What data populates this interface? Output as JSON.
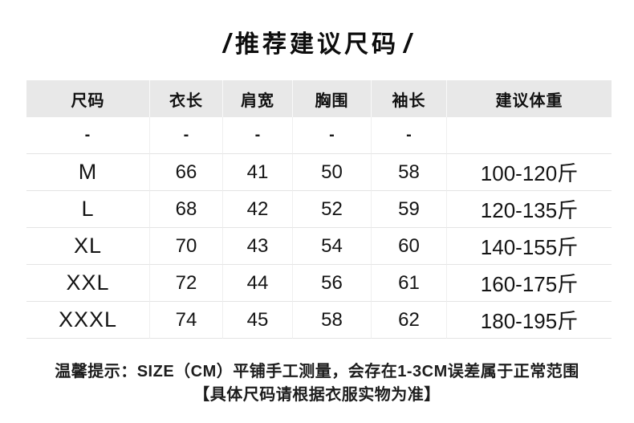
{
  "title": {
    "slash_left": "/",
    "text": "推荐建议尺码",
    "slash_right": "/"
  },
  "chart_data": {
    "type": "table",
    "title": "推荐建议尺码",
    "unit": "CM",
    "columns": [
      "尺码",
      "衣长",
      "肩宽",
      "胸围",
      "袖长",
      "建议体重"
    ],
    "rows": [
      [
        "-",
        "-",
        "-",
        "-",
        "-",
        ""
      ],
      [
        "M",
        "66",
        "41",
        "50",
        "58",
        "100-120斤"
      ],
      [
        "L",
        "68",
        "42",
        "52",
        "59",
        "120-135斤"
      ],
      [
        "XL",
        "70",
        "43",
        "54",
        "60",
        "140-155斤"
      ],
      [
        "XXL",
        "72",
        "44",
        "56",
        "61",
        "160-175斤"
      ],
      [
        "XXXL",
        "74",
        "45",
        "58",
        "62",
        "180-195斤"
      ]
    ]
  },
  "footer": {
    "line1": "温馨提示：SIZE（CM）平铺手工测量，会存在1-3CM误差属于正常范围",
    "line2": "【具体尺码请根据衣服实物为准】"
  },
  "colors": {
    "header_bg": "#e8e8e8",
    "row_border": "#e4e4e4",
    "text": "#141414"
  }
}
